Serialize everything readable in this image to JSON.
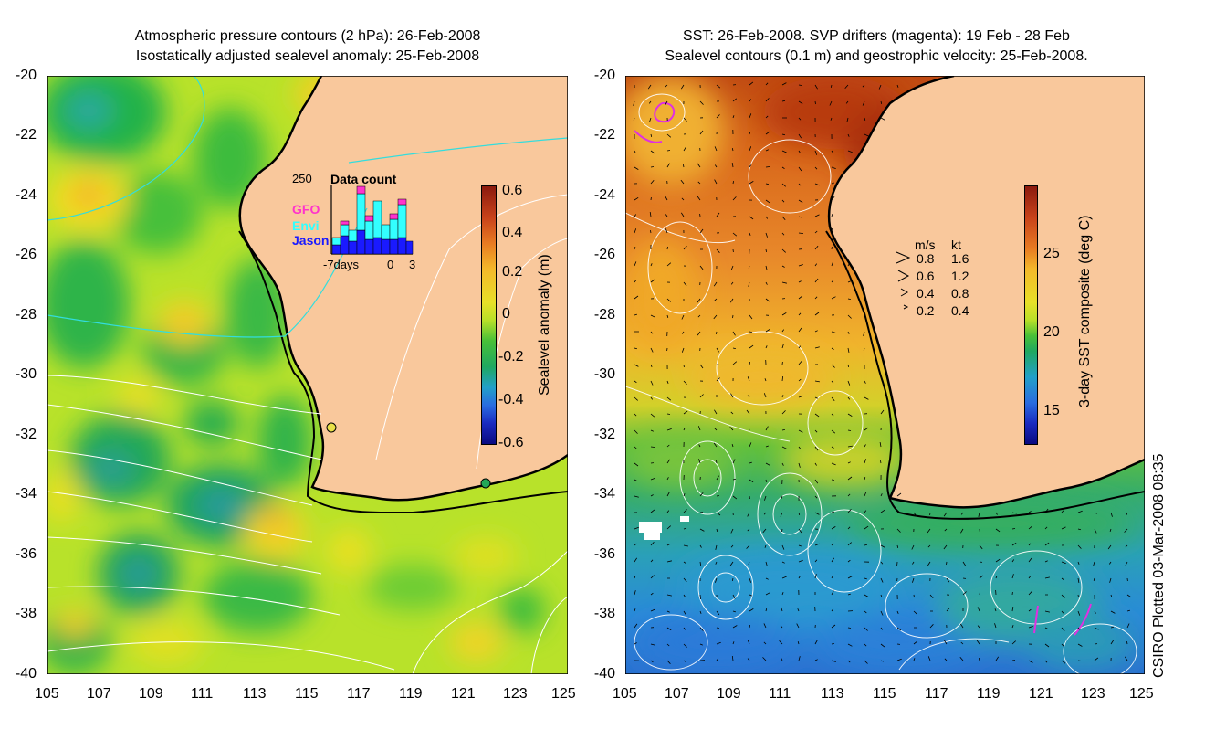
{
  "left_panel": {
    "title_line1": "Atmospheric pressure contours (2 hPa): 26-Feb-2008",
    "title_line2": "Isostatically adjusted sealevel anomaly: 25-Feb-2008",
    "colorbar": {
      "label": "Sealevel anomaly (m)",
      "ticks": [
        "0.6",
        "0.4",
        "0.2",
        "0",
        "-0.2",
        "-0.4",
        "-0.6"
      ]
    },
    "data_count": {
      "title": "Data count",
      "ymax_label": "250",
      "series": [
        "GFO",
        "Envi",
        "Jason"
      ],
      "series_colors": [
        "#ff33cc",
        "#33ffff",
        "#1a1aff"
      ],
      "xlabel_left": "-7days",
      "xlabel_mid": "0",
      "xlabel_right": "3"
    }
  },
  "right_panel": {
    "title_line1": "SST: 26-Feb-2008. SVP drifters (magenta): 19 Feb - 28 Feb",
    "title_line2": "Sealevel contours (0.1 m) and geostrophic velocity: 25-Feb-2008.",
    "colorbar": {
      "label": "3-day SST composite (deg C)",
      "ticks": [
        "25",
        "20",
        "15"
      ]
    },
    "velocity_legend": {
      "header_ms": "m/s",
      "header_kt": "kt",
      "rows": [
        {
          "ms": "0.8",
          "kt": "1.6"
        },
        {
          "ms": "0.6",
          "kt": "1.2"
        },
        {
          "ms": "0.4",
          "kt": "0.8"
        },
        {
          "ms": "0.2",
          "kt": "0.4"
        }
      ]
    }
  },
  "axes": {
    "y_ticks": [
      "-20",
      "-22",
      "-24",
      "-26",
      "-28",
      "-30",
      "-32",
      "-34",
      "-36",
      "-38",
      "-40"
    ],
    "x_ticks": [
      "105",
      "107",
      "109",
      "111",
      "113",
      "115",
      "117",
      "119",
      "121",
      "123",
      "125"
    ]
  },
  "credit": "CSIRO Plotted 03-Mar-2008 08:35",
  "colors": {
    "land": "#f9c89c",
    "coast": "#000000",
    "contour": "#ffffff",
    "pressure_cyan": "#33dddd"
  }
}
